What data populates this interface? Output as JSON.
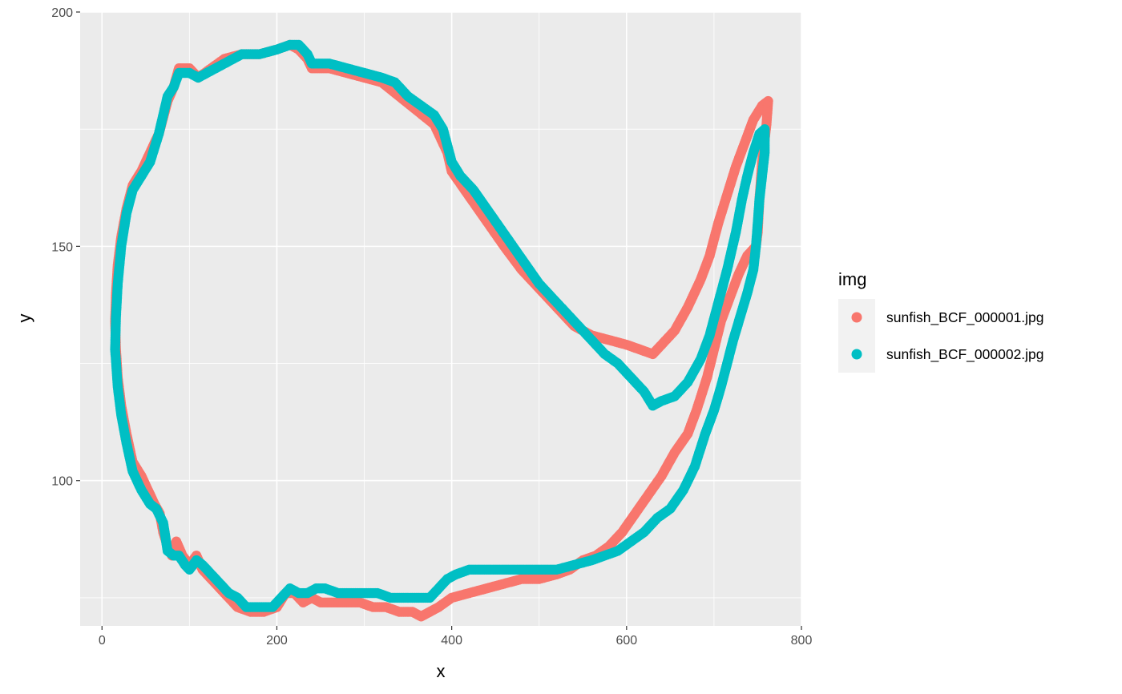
{
  "chart_data": {
    "type": "scatter",
    "xlabel": "x",
    "ylabel": "y",
    "xlim": [
      -25,
      800
    ],
    "ylim": [
      69,
      200
    ],
    "x_ticks": [
      0,
      200,
      400,
      600,
      800
    ],
    "y_ticks": [
      100,
      150,
      200
    ],
    "grid": true,
    "legend": {
      "title": "img",
      "placement": "right"
    },
    "series": [
      {
        "name": "sunfish_BCF_000001.jpg",
        "color": "#F8766D",
        "points": [
          [
            90,
            188
          ],
          [
            100,
            188
          ],
          [
            110,
            186
          ],
          [
            125,
            188
          ],
          [
            140,
            190
          ],
          [
            160,
            191
          ],
          [
            180,
            191
          ],
          [
            200,
            192
          ],
          [
            215,
            193
          ],
          [
            225,
            192
          ],
          [
            235,
            190
          ],
          [
            240,
            188
          ],
          [
            260,
            188
          ],
          [
            280,
            187
          ],
          [
            300,
            186
          ],
          [
            320,
            185
          ],
          [
            340,
            182
          ],
          [
            360,
            179
          ],
          [
            380,
            176
          ],
          [
            395,
            170
          ],
          [
            400,
            166
          ],
          [
            415,
            162
          ],
          [
            430,
            158
          ],
          [
            445,
            154
          ],
          [
            460,
            150
          ],
          [
            480,
            145
          ],
          [
            500,
            141
          ],
          [
            520,
            137
          ],
          [
            540,
            133
          ],
          [
            560,
            131
          ],
          [
            580,
            130
          ],
          [
            600,
            129
          ],
          [
            615,
            128
          ],
          [
            630,
            127
          ],
          [
            640,
            129
          ],
          [
            655,
            132
          ],
          [
            670,
            137
          ],
          [
            685,
            143
          ],
          [
            695,
            148
          ],
          [
            705,
            155
          ],
          [
            715,
            161
          ],
          [
            725,
            167
          ],
          [
            735,
            172
          ],
          [
            745,
            177
          ],
          [
            755,
            180
          ],
          [
            762,
            181
          ],
          [
            760,
            176
          ],
          [
            755,
            168
          ],
          [
            752,
            160
          ],
          [
            750,
            153
          ],
          [
            748,
            150
          ],
          [
            738,
            148
          ],
          [
            728,
            144
          ],
          [
            718,
            139
          ],
          [
            708,
            134
          ],
          [
            700,
            128
          ],
          [
            692,
            122
          ],
          [
            680,
            115
          ],
          [
            670,
            110
          ],
          [
            655,
            106
          ],
          [
            640,
            101
          ],
          [
            625,
            97
          ],
          [
            610,
            93
          ],
          [
            595,
            89
          ],
          [
            580,
            86
          ],
          [
            565,
            84
          ],
          [
            550,
            83
          ],
          [
            535,
            81
          ],
          [
            520,
            80
          ],
          [
            500,
            79
          ],
          [
            480,
            79
          ],
          [
            460,
            78
          ],
          [
            440,
            77
          ],
          [
            420,
            76
          ],
          [
            400,
            75
          ],
          [
            385,
            73
          ],
          [
            375,
            72
          ],
          [
            365,
            71
          ],
          [
            355,
            72
          ],
          [
            340,
            72
          ],
          [
            325,
            73
          ],
          [
            310,
            73
          ],
          [
            295,
            74
          ],
          [
            280,
            74
          ],
          [
            265,
            74
          ],
          [
            250,
            74
          ],
          [
            240,
            75
          ],
          [
            230,
            74
          ],
          [
            220,
            76
          ],
          [
            210,
            76
          ],
          [
            200,
            73
          ],
          [
            185,
            72
          ],
          [
            170,
            72
          ],
          [
            155,
            73
          ],
          [
            145,
            75
          ],
          [
            135,
            77
          ],
          [
            125,
            79
          ],
          [
            115,
            81
          ],
          [
            108,
            84
          ],
          [
            100,
            82
          ],
          [
            92,
            84
          ],
          [
            85,
            87
          ],
          [
            80,
            84
          ],
          [
            75,
            86
          ],
          [
            70,
            89
          ],
          [
            66,
            93
          ],
          [
            60,
            95
          ],
          [
            55,
            97
          ],
          [
            45,
            101
          ],
          [
            35,
            104
          ],
          [
            28,
            110
          ],
          [
            22,
            116
          ],
          [
            18,
            122
          ],
          [
            16,
            128
          ],
          [
            15,
            134
          ],
          [
            16,
            140
          ],
          [
            18,
            146
          ],
          [
            22,
            152
          ],
          [
            28,
            158
          ],
          [
            35,
            163
          ],
          [
            45,
            166
          ],
          [
            55,
            170
          ],
          [
            65,
            174
          ],
          [
            75,
            181
          ],
          [
            82,
            184
          ],
          [
            88,
            188
          ]
        ]
      },
      {
        "name": "sunfish_BCF_000002.jpg",
        "color": "#00BFC4",
        "points": [
          [
            90,
            187
          ],
          [
            100,
            187
          ],
          [
            110,
            186
          ],
          [
            120,
            187
          ],
          [
            130,
            188
          ],
          [
            140,
            189
          ],
          [
            150,
            190
          ],
          [
            160,
            191
          ],
          [
            180,
            191
          ],
          [
            200,
            192
          ],
          [
            215,
            193
          ],
          [
            225,
            193
          ],
          [
            235,
            191
          ],
          [
            240,
            189
          ],
          [
            260,
            189
          ],
          [
            280,
            188
          ],
          [
            300,
            187
          ],
          [
            320,
            186
          ],
          [
            335,
            185
          ],
          [
            350,
            182
          ],
          [
            365,
            180
          ],
          [
            380,
            178
          ],
          [
            390,
            175
          ],
          [
            400,
            168
          ],
          [
            410,
            165
          ],
          [
            425,
            162
          ],
          [
            440,
            158
          ],
          [
            455,
            154
          ],
          [
            470,
            150
          ],
          [
            485,
            146
          ],
          [
            500,
            142
          ],
          [
            515,
            139
          ],
          [
            530,
            136
          ],
          [
            545,
            133
          ],
          [
            560,
            130
          ],
          [
            575,
            127
          ],
          [
            590,
            125
          ],
          [
            605,
            122
          ],
          [
            620,
            119
          ],
          [
            630,
            116
          ],
          [
            640,
            117
          ],
          [
            655,
            118
          ],
          [
            670,
            121
          ],
          [
            685,
            126
          ],
          [
            695,
            131
          ],
          [
            705,
            138
          ],
          [
            715,
            145
          ],
          [
            725,
            153
          ],
          [
            732,
            160
          ],
          [
            738,
            165
          ],
          [
            745,
            170
          ],
          [
            752,
            174
          ],
          [
            758,
            175
          ],
          [
            758,
            170
          ],
          [
            755,
            165
          ],
          [
            752,
            160
          ],
          [
            750,
            155
          ],
          [
            748,
            150
          ],
          [
            745,
            145
          ],
          [
            738,
            140
          ],
          [
            730,
            135
          ],
          [
            722,
            130
          ],
          [
            715,
            125
          ],
          [
            708,
            120
          ],
          [
            700,
            115
          ],
          [
            690,
            110
          ],
          [
            678,
            103
          ],
          [
            665,
            98
          ],
          [
            650,
            94
          ],
          [
            635,
            92
          ],
          [
            620,
            89
          ],
          [
            605,
            87
          ],
          [
            590,
            85
          ],
          [
            575,
            84
          ],
          [
            560,
            83
          ],
          [
            540,
            82
          ],
          [
            520,
            81
          ],
          [
            500,
            81
          ],
          [
            480,
            81
          ],
          [
            460,
            81
          ],
          [
            440,
            81
          ],
          [
            420,
            81
          ],
          [
            405,
            80
          ],
          [
            395,
            79
          ],
          [
            385,
            77
          ],
          [
            375,
            75
          ],
          [
            360,
            75
          ],
          [
            345,
            75
          ],
          [
            330,
            75
          ],
          [
            315,
            76
          ],
          [
            300,
            76
          ],
          [
            285,
            76
          ],
          [
            270,
            76
          ],
          [
            255,
            77
          ],
          [
            245,
            77
          ],
          [
            235,
            76
          ],
          [
            225,
            76
          ],
          [
            215,
            77
          ],
          [
            205,
            75
          ],
          [
            195,
            73
          ],
          [
            180,
            73
          ],
          [
            165,
            73
          ],
          [
            155,
            75
          ],
          [
            145,
            76
          ],
          [
            135,
            78
          ],
          [
            125,
            80
          ],
          [
            115,
            82
          ],
          [
            108,
            83
          ],
          [
            100,
            81
          ],
          [
            95,
            82
          ],
          [
            88,
            84
          ],
          [
            82,
            84
          ],
          [
            75,
            85
          ],
          [
            70,
            91
          ],
          [
            62,
            94
          ],
          [
            55,
            95
          ],
          [
            45,
            98
          ],
          [
            35,
            102
          ],
          [
            28,
            108
          ],
          [
            22,
            114
          ],
          [
            18,
            120
          ],
          [
            15,
            128
          ],
          [
            16,
            135
          ],
          [
            18,
            142
          ],
          [
            22,
            150
          ],
          [
            28,
            157
          ],
          [
            35,
            162
          ],
          [
            45,
            165
          ],
          [
            55,
            168
          ],
          [
            65,
            174
          ],
          [
            75,
            182
          ],
          [
            82,
            184
          ],
          [
            88,
            187
          ]
        ]
      }
    ]
  }
}
